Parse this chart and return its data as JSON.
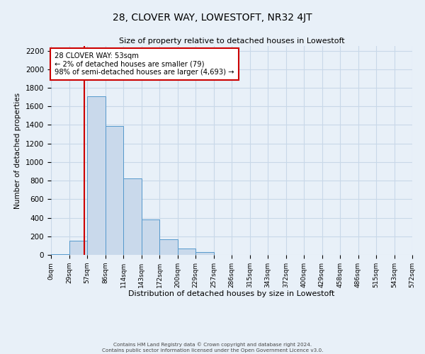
{
  "title": "28, CLOVER WAY, LOWESTOFT, NR32 4JT",
  "subtitle": "Size of property relative to detached houses in Lowestoft",
  "xlabel": "Distribution of detached houses by size in Lowestoft",
  "ylabel": "Number of detached properties",
  "bin_labels": [
    "0sqm",
    "29sqm",
    "57sqm",
    "86sqm",
    "114sqm",
    "143sqm",
    "172sqm",
    "200sqm",
    "229sqm",
    "257sqm",
    "286sqm",
    "315sqm",
    "343sqm",
    "372sqm",
    "400sqm",
    "429sqm",
    "458sqm",
    "486sqm",
    "515sqm",
    "543sqm",
    "572sqm"
  ],
  "bar_values": [
    10,
    155,
    1710,
    1390,
    820,
    385,
    165,
    70,
    30,
    0,
    0,
    0,
    0,
    0,
    0,
    0,
    0,
    0,
    0,
    0
  ],
  "bar_color": "#c9d9eb",
  "bar_edge_color": "#5599cc",
  "property_line_color": "#cc0000",
  "ylim": [
    0,
    2250
  ],
  "yticks": [
    0,
    200,
    400,
    600,
    800,
    1000,
    1200,
    1400,
    1600,
    1800,
    2000,
    2200
  ],
  "annotation_title": "28 CLOVER WAY: 53sqm",
  "annotation_line1": "← 2% of detached houses are smaller (79)",
  "annotation_line2": "98% of semi-detached houses are larger (4,693) →",
  "annotation_box_color": "#ffffff",
  "annotation_box_edge": "#cc0000",
  "grid_color": "#c8d8e8",
  "background_color": "#e8f0f8",
  "footer_line1": "Contains HM Land Registry data © Crown copyright and database right 2024.",
  "footer_line2": "Contains public sector information licensed under the Open Government Licence v3.0."
}
